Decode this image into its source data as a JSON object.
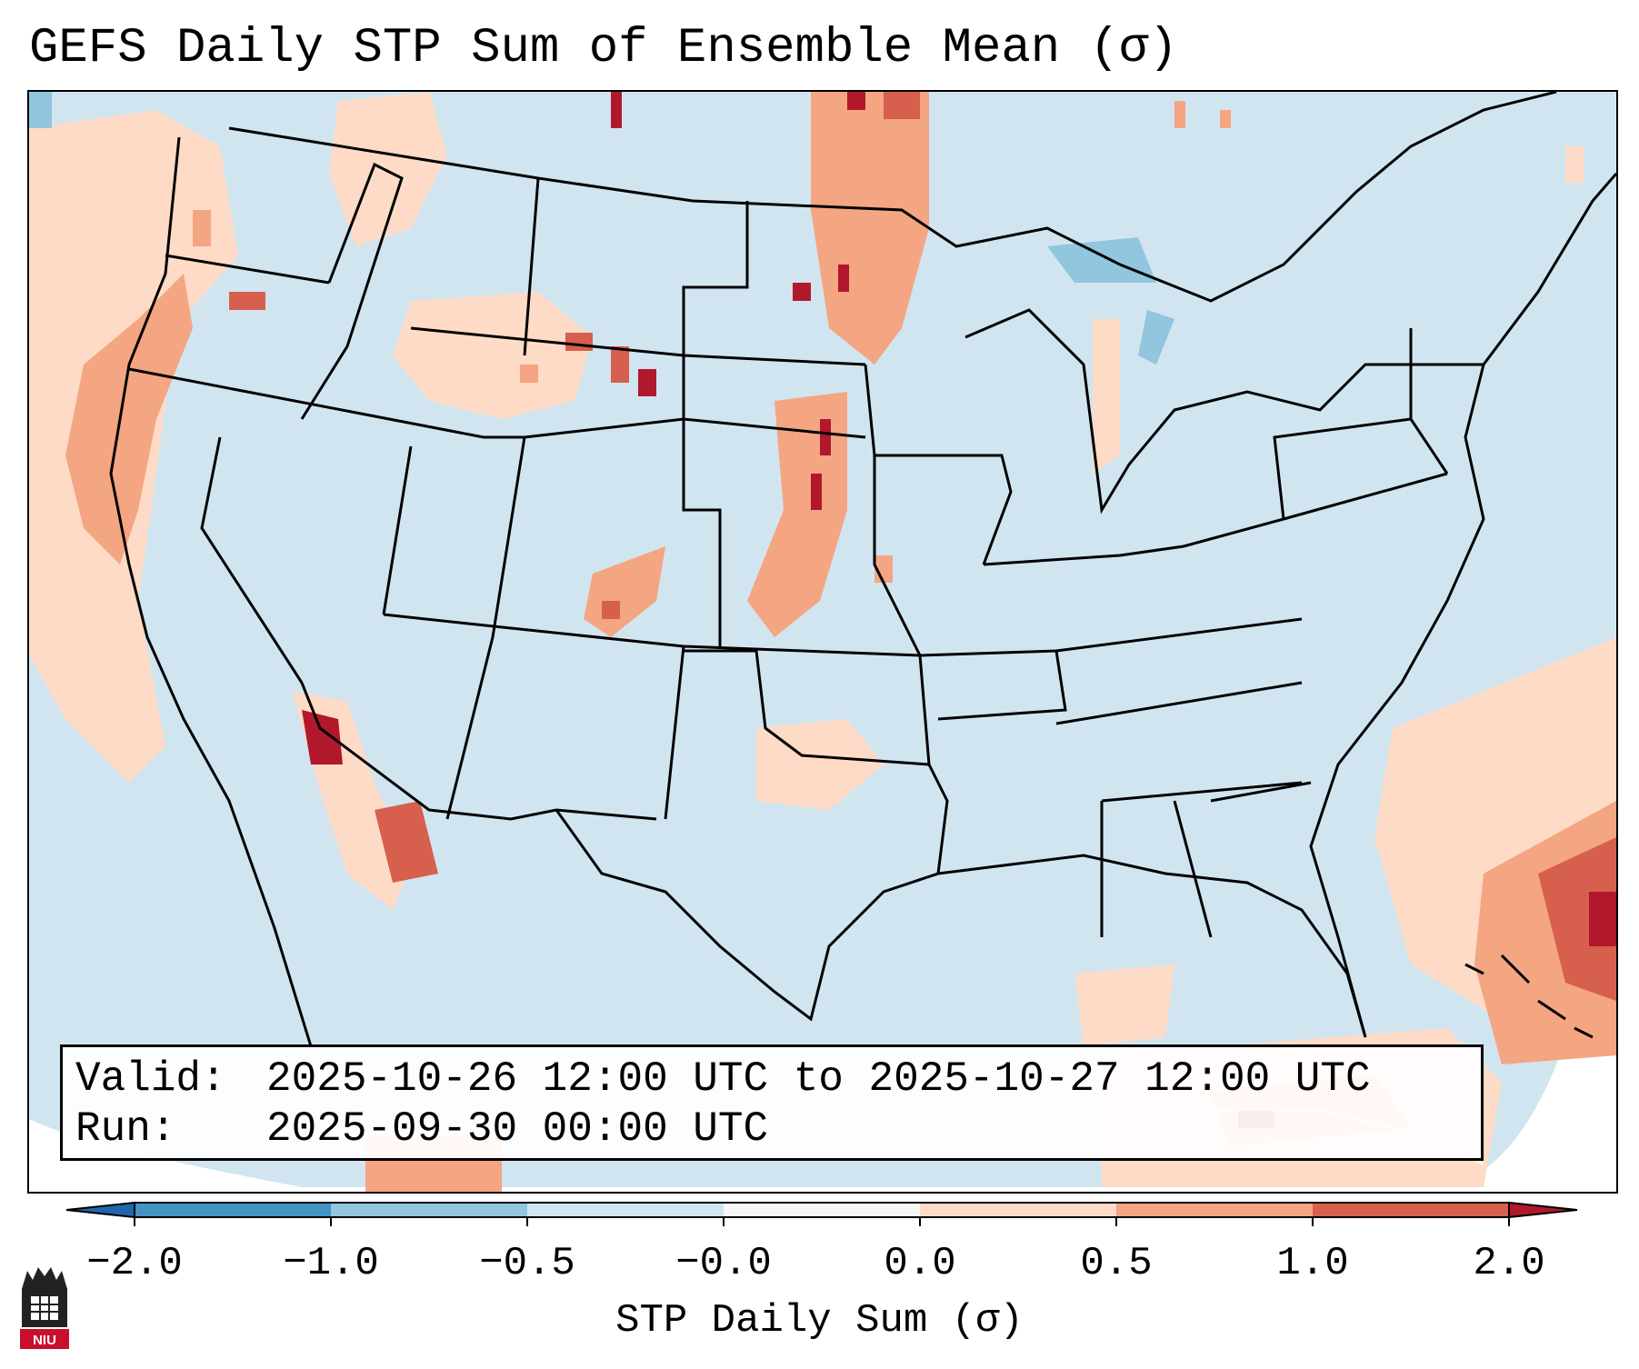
{
  "title": "GEFS Daily STP Sum of Ensemble Mean (σ)",
  "info": {
    "valid_label": "Valid:",
    "valid_value": "2025-10-26 12:00 UTC to 2025-10-27 12:00 UTC",
    "run_label": "Run:",
    "run_value": "2025-09-30 00:00 UTC"
  },
  "colorbar": {
    "label": "STP Daily Sum (σ)",
    "ticks": [
      "−2.0",
      "−1.0",
      "−0.5",
      "−0.0",
      "0.0",
      "0.5",
      "1.0",
      "2.0"
    ],
    "bins": [
      {
        "range": "< -2.0",
        "color": "#2166ac"
      },
      {
        "range": "-2.0 to -1.0",
        "color": "#4393c3"
      },
      {
        "range": "-1.0 to -0.5",
        "color": "#92c5de"
      },
      {
        "range": "-0.5 to -0.0",
        "color": "#d1e5f0"
      },
      {
        "range": "-0.0 to 0.0",
        "color": "#f7f7f7"
      },
      {
        "range": "0.0 to 0.5",
        "color": "#fddbc7"
      },
      {
        "range": "0.5 to 1.0",
        "color": "#f4a582"
      },
      {
        "range": "1.0 to 2.0",
        "color": "#d6604d"
      },
      {
        "range": "> 2.0",
        "color": "#b2182b"
      }
    ]
  },
  "map": {
    "background_color": "#d1e5f0",
    "extent_color": "#ffffff",
    "region": "Contiguous United States",
    "anomaly_regions": [
      {
        "name": "Pacific Northwest coast",
        "level": "0.5 to 1.0",
        "color": "#f4a582"
      },
      {
        "name": "Northern Rockies",
        "level": "0.5 to 1.0",
        "color": "#f4a582"
      },
      {
        "name": "North Dakota / Minnesota",
        "level": "1.0 to 2.0",
        "color": "#d6604d"
      },
      {
        "name": "Nebraska / Kansas",
        "level": "> 2.0",
        "color": "#b2182b"
      },
      {
        "name": "Baja California",
        "level": "> 2.0",
        "color": "#b2182b"
      },
      {
        "name": "Caribbean / Bahamas",
        "level": "> 2.0",
        "color": "#b2182b"
      },
      {
        "name": "Western Atlantic",
        "level": "0.0 to 0.5",
        "color": "#fddbc7"
      },
      {
        "name": "Great Lakes",
        "level": "-1.0 to -0.5",
        "color": "#92c5de"
      }
    ]
  },
  "logo": {
    "name": "NIU",
    "text": "NIU",
    "color": "#c8102e"
  }
}
